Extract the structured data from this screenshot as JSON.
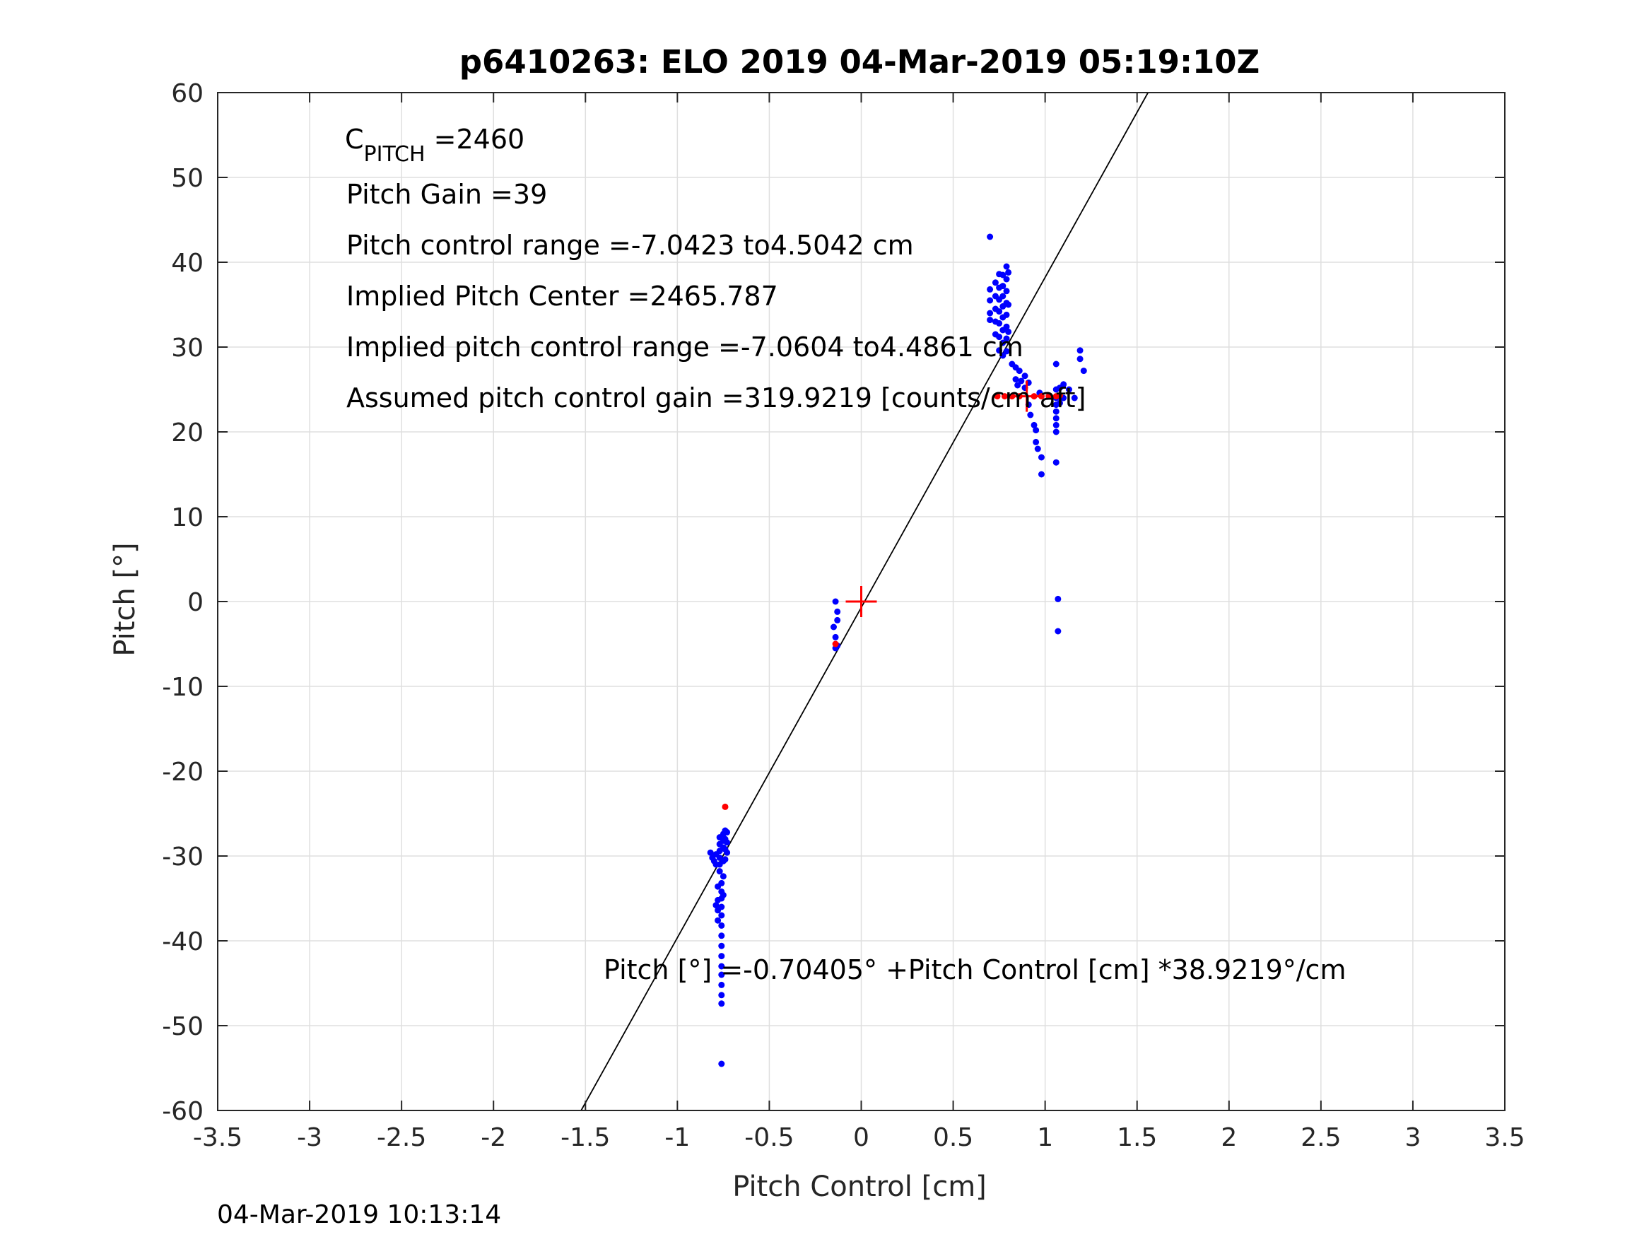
{
  "chart_data": {
    "type": "scatter",
    "title": "p6410263: ELO 2019 04-Mar-2019 05:19:10Z",
    "xlabel": "Pitch Control [cm]",
    "ylabel": "Pitch [°]",
    "xlim": [
      -3.5,
      3.5
    ],
    "ylim": [
      -60,
      60
    ],
    "grid": true,
    "xticks": [
      -3.5,
      -3,
      -2.5,
      -2,
      -1.5,
      -1,
      -0.5,
      0,
      0.5,
      1,
      1.5,
      2,
      2.5,
      3,
      3.5
    ],
    "xtick_labels": [
      "-3.5",
      "-3",
      "-2.5",
      "-2",
      "-1.5",
      "-1",
      "-0.5",
      "0",
      "0.5",
      "1",
      "1.5",
      "2",
      "2.5",
      "3",
      "3.5"
    ],
    "yticks": [
      -60,
      -50,
      -40,
      -30,
      -20,
      -10,
      0,
      10,
      20,
      30,
      40,
      50,
      60
    ],
    "ytick_labels": [
      "-60",
      "-50",
      "-40",
      "-30",
      "-20",
      "-10",
      "0",
      "10",
      "20",
      "30",
      "40",
      "50",
      "60"
    ],
    "fit_line": {
      "intercept": -0.70405,
      "slope": 38.9219,
      "color": "#000000"
    },
    "center_marker": {
      "x": 0,
      "y": 0,
      "color": "#ff0000"
    },
    "center_marker_2": {
      "x": 0.9,
      "y": 24.2,
      "color": "#ff0000"
    },
    "blue_color": "#0000ff",
    "red_color": "#ff0000",
    "annotations": {
      "cpitch_main": "C",
      "cpitch_sub": "PITCH",
      "cpitch_value": " =2460",
      "pitch_gain": "Pitch Gain =39",
      "control_range": "Pitch control range =-7.0423 to4.5042 cm",
      "implied_center": "Implied Pitch Center =2465.787",
      "implied_range": "Implied pitch control range =-7.0604 to4.4861 cm",
      "assumed_gain": "Assumed pitch control gain =319.9219 [counts/cm aft]",
      "fit_equation": "Pitch [°] =-0.70405° +Pitch Control [cm] *38.9219°/cm"
    },
    "timestamp": "04-Mar-2019 10:13:14",
    "red_points": [
      [
        -0.74,
        -24.2
      ],
      [
        -0.14,
        -5.0
      ],
      [
        0.74,
        24.2
      ],
      [
        0.78,
        24.2
      ],
      [
        0.82,
        24.2
      ],
      [
        0.86,
        24.2
      ],
      [
        0.94,
        24.2
      ],
      [
        0.98,
        24.2
      ],
      [
        1.02,
        24.2
      ],
      [
        1.06,
        24.2
      ],
      [
        1.08,
        24.3
      ]
    ],
    "blue_points": [
      [
        0.7,
        43.0
      ],
      [
        0.7,
        36.8
      ],
      [
        0.7,
        35.5
      ],
      [
        0.7,
        34.0
      ],
      [
        0.7,
        33.2
      ],
      [
        0.73,
        37.6
      ],
      [
        0.73,
        36.0
      ],
      [
        0.73,
        34.5
      ],
      [
        0.73,
        33.0
      ],
      [
        0.73,
        31.5
      ],
      [
        0.75,
        38.6
      ],
      [
        0.75,
        37.0
      ],
      [
        0.75,
        35.6
      ],
      [
        0.75,
        34.2
      ],
      [
        0.75,
        32.8
      ],
      [
        0.75,
        31.2
      ],
      [
        0.75,
        29.6
      ],
      [
        0.77,
        38.5
      ],
      [
        0.77,
        37.2
      ],
      [
        0.77,
        36.0
      ],
      [
        0.77,
        34.8
      ],
      [
        0.77,
        33.5
      ],
      [
        0.77,
        32.0
      ],
      [
        0.77,
        30.5
      ],
      [
        0.77,
        29.0
      ],
      [
        0.79,
        39.5
      ],
      [
        0.79,
        38.0
      ],
      [
        0.79,
        36.6
      ],
      [
        0.79,
        35.2
      ],
      [
        0.79,
        33.8
      ],
      [
        0.79,
        32.4
      ],
      [
        0.79,
        31.0
      ],
      [
        0.79,
        29.5
      ],
      [
        0.8,
        38.8
      ],
      [
        0.8,
        35.0
      ],
      [
        0.8,
        31.8
      ],
      [
        0.82,
        28.0
      ],
      [
        0.84,
        27.6
      ],
      [
        0.84,
        26.2
      ],
      [
        0.85,
        25.5
      ],
      [
        0.86,
        27.2
      ],
      [
        0.87,
        26.0
      ],
      [
        0.89,
        26.6
      ],
      [
        0.89,
        25.2
      ],
      [
        0.91,
        25.8
      ],
      [
        0.91,
        23.2
      ],
      [
        0.92,
        22.0
      ],
      [
        0.94,
        20.8
      ],
      [
        0.95,
        20.2
      ],
      [
        0.95,
        18.8
      ],
      [
        0.96,
        18.0
      ],
      [
        0.98,
        17.0
      ],
      [
        0.98,
        15.0
      ],
      [
        0.97,
        24.6
      ],
      [
        1.06,
        28.0
      ],
      [
        1.06,
        25.0
      ],
      [
        1.06,
        24.0
      ],
      [
        1.06,
        23.2
      ],
      [
        1.06,
        22.4
      ],
      [
        1.06,
        21.6
      ],
      [
        1.06,
        20.8
      ],
      [
        1.06,
        20.0
      ],
      [
        1.06,
        16.4
      ],
      [
        1.08,
        25.2
      ],
      [
        1.08,
        23.4
      ],
      [
        1.1,
        25.6
      ],
      [
        1.1,
        24.0
      ],
      [
        1.13,
        25.0
      ],
      [
        1.16,
        24.0
      ],
      [
        1.19,
        29.6
      ],
      [
        1.19,
        28.6
      ],
      [
        1.21,
        27.2
      ],
      [
        1.07,
        0.3
      ],
      [
        1.07,
        -3.5
      ],
      [
        -0.14,
        0.0
      ],
      [
        -0.13,
        -1.2
      ],
      [
        -0.13,
        -2.2
      ],
      [
        -0.15,
        -3.0
      ],
      [
        -0.14,
        -4.2
      ],
      [
        -0.13,
        -5.2
      ],
      [
        -0.14,
        -5.5
      ],
      [
        -0.82,
        -29.6
      ],
      [
        -0.81,
        -30.2
      ],
      [
        -0.8,
        -30.6
      ],
      [
        -0.79,
        -31.0
      ],
      [
        -0.79,
        -29.8
      ],
      [
        -0.77,
        -27.8
      ],
      [
        -0.77,
        -28.6
      ],
      [
        -0.77,
        -29.4
      ],
      [
        -0.77,
        -30.2
      ],
      [
        -0.77,
        -31.0
      ],
      [
        -0.77,
        -31.8
      ],
      [
        -0.76,
        -33.2
      ],
      [
        -0.76,
        -34.2
      ],
      [
        -0.76,
        -35.0
      ],
      [
        -0.76,
        -36.0
      ],
      [
        -0.76,
        -37.0
      ],
      [
        -0.76,
        -38.2
      ],
      [
        -0.76,
        -39.4
      ],
      [
        -0.76,
        -40.6
      ],
      [
        -0.76,
        -41.8
      ],
      [
        -0.76,
        -43.0
      ],
      [
        -0.76,
        -44.0
      ],
      [
        -0.76,
        -45.2
      ],
      [
        -0.76,
        -46.4
      ],
      [
        -0.76,
        -47.4
      ],
      [
        -0.75,
        -27.4
      ],
      [
        -0.75,
        -28.2
      ],
      [
        -0.75,
        -29.0
      ],
      [
        -0.75,
        -30.6
      ],
      [
        -0.75,
        -32.4
      ],
      [
        -0.75,
        -34.6
      ],
      [
        -0.74,
        -27.0
      ],
      [
        -0.74,
        -28.0
      ],
      [
        -0.74,
        -29.2
      ],
      [
        -0.74,
        -30.4
      ],
      [
        -0.73,
        -27.2
      ],
      [
        -0.73,
        -28.4
      ],
      [
        -0.73,
        -29.6
      ],
      [
        -0.78,
        -35.2
      ],
      [
        -0.78,
        -36.4
      ],
      [
        -0.78,
        -37.6
      ],
      [
        -0.79,
        -35.8
      ],
      [
        -0.78,
        -33.6
      ],
      [
        -0.76,
        -54.5
      ]
    ]
  }
}
